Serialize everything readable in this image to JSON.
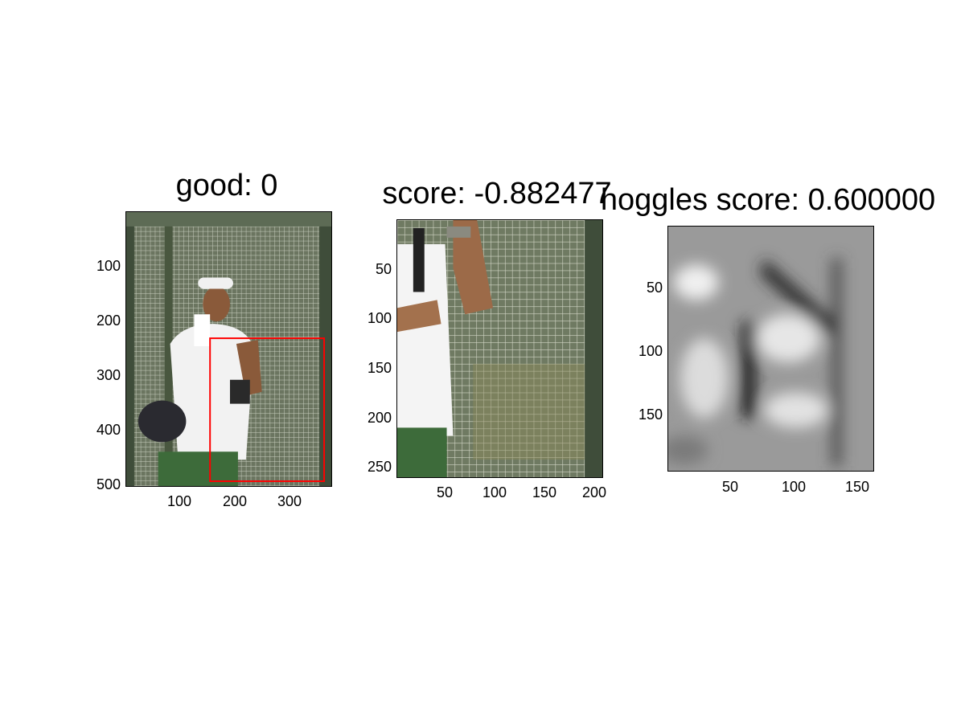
{
  "panels": [
    {
      "title": "good: 0",
      "yticks": [
        "100",
        "200",
        "300",
        "400",
        "500"
      ],
      "xticks": [
        "100",
        "200",
        "300"
      ],
      "image": "photo of man in white cap near wire mesh cage, red bounding box on right side"
    },
    {
      "title": "score: -0.882477",
      "yticks": [
        "50",
        "100",
        "150",
        "200",
        "250"
      ],
      "xticks": [
        "50",
        "100",
        "150",
        "200"
      ],
      "image": "crop of wire mesh cage with partial person on left"
    },
    {
      "title": "hoggles score: 0.600000",
      "yticks": [
        "50",
        "100",
        "150"
      ],
      "xticks": [
        "50",
        "100",
        "150"
      ],
      "image": "grayscale HOG inversion visualization"
    }
  ],
  "colors": {
    "bbox": "#ff0000",
    "cage": "#5a6650",
    "grass": "#3d6b3a"
  }
}
